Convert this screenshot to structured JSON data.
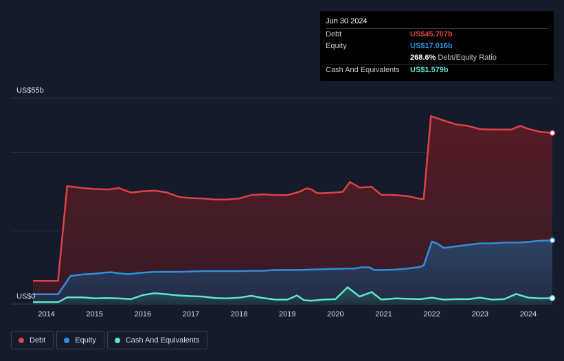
{
  "tooltip": {
    "date": "Jun 30 2024",
    "rows": [
      {
        "label": "Debt",
        "value": "US$45.707b",
        "color": "#e0424a"
      },
      {
        "label": "Equity",
        "value": "US$17.016b",
        "color": "#2e8fe0"
      },
      {
        "label": "",
        "value": "268.6%",
        "sub": "Debt/Equity Ratio",
        "color": "#ffffff"
      },
      {
        "label": "Cash And Equivalents",
        "value": "US$1.579b",
        "color": "#5ee6d0"
      }
    ]
  },
  "legend": [
    {
      "label": "Debt",
      "color": "#e0424a"
    },
    {
      "label": "Equity",
      "color": "#2e8fe0"
    },
    {
      "label": "Cash And Equivalents",
      "color": "#5ee6d0"
    }
  ],
  "chart_data": {
    "type": "area",
    "y_max_label": "US$55b",
    "y_min_label": "US$0",
    "ylim": [
      0,
      55
    ],
    "xlim": [
      2013.72,
      2024.5
    ],
    "x_ticks": [
      "2014",
      "2015",
      "2016",
      "2017",
      "2018",
      "2019",
      "2020",
      "2021",
      "2022",
      "2023",
      "2024"
    ],
    "grid": true,
    "legend_position": "bottom-left",
    "series": [
      {
        "name": "Debt",
        "color": "#e0424a",
        "points": [
          [
            2013.72,
            6.2
          ],
          [
            2014.24,
            6.2
          ],
          [
            2014.43,
            31.5
          ],
          [
            2014.75,
            31.0
          ],
          [
            2015.0,
            30.7
          ],
          [
            2015.3,
            30.6
          ],
          [
            2015.5,
            31.0
          ],
          [
            2015.75,
            29.8
          ],
          [
            2016.0,
            30.1
          ],
          [
            2016.25,
            30.3
          ],
          [
            2016.5,
            29.8
          ],
          [
            2016.75,
            28.6
          ],
          [
            2017.0,
            28.3
          ],
          [
            2017.25,
            28.2
          ],
          [
            2017.5,
            27.9
          ],
          [
            2017.75,
            27.9
          ],
          [
            2018.0,
            28.2
          ],
          [
            2018.25,
            29.1
          ],
          [
            2018.5,
            29.3
          ],
          [
            2018.75,
            29.1
          ],
          [
            2019.0,
            29.1
          ],
          [
            2019.25,
            30.0
          ],
          [
            2019.4,
            30.9
          ],
          [
            2019.5,
            30.6
          ],
          [
            2019.62,
            29.6
          ],
          [
            2019.75,
            29.6
          ],
          [
            2020.0,
            29.8
          ],
          [
            2020.15,
            30.0
          ],
          [
            2020.3,
            32.6
          ],
          [
            2020.5,
            31.1
          ],
          [
            2020.75,
            31.3
          ],
          [
            2020.95,
            29.2
          ],
          [
            2021.25,
            29.1
          ],
          [
            2021.5,
            28.8
          ],
          [
            2021.75,
            28.1
          ],
          [
            2021.83,
            28.1
          ],
          [
            2021.98,
            50.2
          ],
          [
            2022.25,
            49.0
          ],
          [
            2022.5,
            48.0
          ],
          [
            2022.75,
            47.6
          ],
          [
            2023.0,
            46.7
          ],
          [
            2023.25,
            46.6
          ],
          [
            2023.5,
            46.6
          ],
          [
            2023.65,
            46.6
          ],
          [
            2023.83,
            47.6
          ],
          [
            2024.0,
            46.8
          ],
          [
            2024.25,
            46.0
          ],
          [
            2024.5,
            45.707
          ]
        ]
      },
      {
        "name": "Equity",
        "color": "#2e8fe0",
        "points": [
          [
            2013.72,
            2.6
          ],
          [
            2014.24,
            2.6
          ],
          [
            2014.5,
            7.5
          ],
          [
            2014.75,
            7.9
          ],
          [
            2015.0,
            8.1
          ],
          [
            2015.2,
            8.4
          ],
          [
            2015.35,
            8.5
          ],
          [
            2015.5,
            8.2
          ],
          [
            2015.7,
            8.0
          ],
          [
            2016.0,
            8.4
          ],
          [
            2016.25,
            8.6
          ],
          [
            2016.5,
            8.6
          ],
          [
            2016.75,
            8.6
          ],
          [
            2017.0,
            8.7
          ],
          [
            2017.25,
            8.8
          ],
          [
            2017.5,
            8.8
          ],
          [
            2017.75,
            8.8
          ],
          [
            2018.0,
            8.8
          ],
          [
            2018.25,
            8.9
          ],
          [
            2018.5,
            8.9
          ],
          [
            2018.75,
            9.1
          ],
          [
            2019.0,
            9.1
          ],
          [
            2019.25,
            9.1
          ],
          [
            2019.5,
            9.2
          ],
          [
            2019.75,
            9.3
          ],
          [
            2020.0,
            9.4
          ],
          [
            2020.25,
            9.5
          ],
          [
            2020.4,
            9.5
          ],
          [
            2020.55,
            9.8
          ],
          [
            2020.7,
            9.8
          ],
          [
            2020.8,
            9.1
          ],
          [
            2021.0,
            9.1
          ],
          [
            2021.25,
            9.2
          ],
          [
            2021.5,
            9.5
          ],
          [
            2021.75,
            9.9
          ],
          [
            2021.83,
            10.3
          ],
          [
            2022.0,
            16.7
          ],
          [
            2022.1,
            16.2
          ],
          [
            2022.25,
            15.0
          ],
          [
            2022.5,
            15.4
          ],
          [
            2022.75,
            15.8
          ],
          [
            2023.0,
            16.2
          ],
          [
            2023.25,
            16.2
          ],
          [
            2023.5,
            16.4
          ],
          [
            2023.75,
            16.4
          ],
          [
            2024.0,
            16.6
          ],
          [
            2024.25,
            16.9
          ],
          [
            2024.5,
            17.016
          ]
        ]
      },
      {
        "name": "Cash And Equivalents",
        "color": "#5ee6d0",
        "points": [
          [
            2013.72,
            0.5
          ],
          [
            2014.24,
            0.5
          ],
          [
            2014.43,
            1.8
          ],
          [
            2014.75,
            1.8
          ],
          [
            2015.0,
            1.5
          ],
          [
            2015.25,
            1.6
          ],
          [
            2015.5,
            1.5
          ],
          [
            2015.75,
            1.3
          ],
          [
            2016.0,
            2.4
          ],
          [
            2016.25,
            2.9
          ],
          [
            2016.5,
            2.6
          ],
          [
            2016.75,
            2.3
          ],
          [
            2017.0,
            2.1
          ],
          [
            2017.25,
            2.0
          ],
          [
            2017.5,
            1.6
          ],
          [
            2017.75,
            1.5
          ],
          [
            2018.0,
            1.7
          ],
          [
            2018.25,
            2.2
          ],
          [
            2018.5,
            1.6
          ],
          [
            2018.75,
            1.2
          ],
          [
            2019.0,
            1.2
          ],
          [
            2019.2,
            2.3
          ],
          [
            2019.35,
            1.0
          ],
          [
            2019.5,
            0.9
          ],
          [
            2019.75,
            1.2
          ],
          [
            2020.0,
            1.3
          ],
          [
            2020.25,
            4.5
          ],
          [
            2020.5,
            2.0
          ],
          [
            2020.75,
            3.2
          ],
          [
            2020.95,
            1.2
          ],
          [
            2021.25,
            1.5
          ],
          [
            2021.5,
            1.4
          ],
          [
            2021.75,
            1.3
          ],
          [
            2022.0,
            1.7
          ],
          [
            2022.25,
            1.2
          ],
          [
            2022.5,
            1.3
          ],
          [
            2022.75,
            1.3
          ],
          [
            2023.0,
            1.7
          ],
          [
            2023.25,
            1.2
          ],
          [
            2023.5,
            1.3
          ],
          [
            2023.75,
            2.7
          ],
          [
            2024.0,
            1.7
          ],
          [
            2024.25,
            1.5
          ],
          [
            2024.5,
            1.579
          ]
        ]
      }
    ]
  }
}
